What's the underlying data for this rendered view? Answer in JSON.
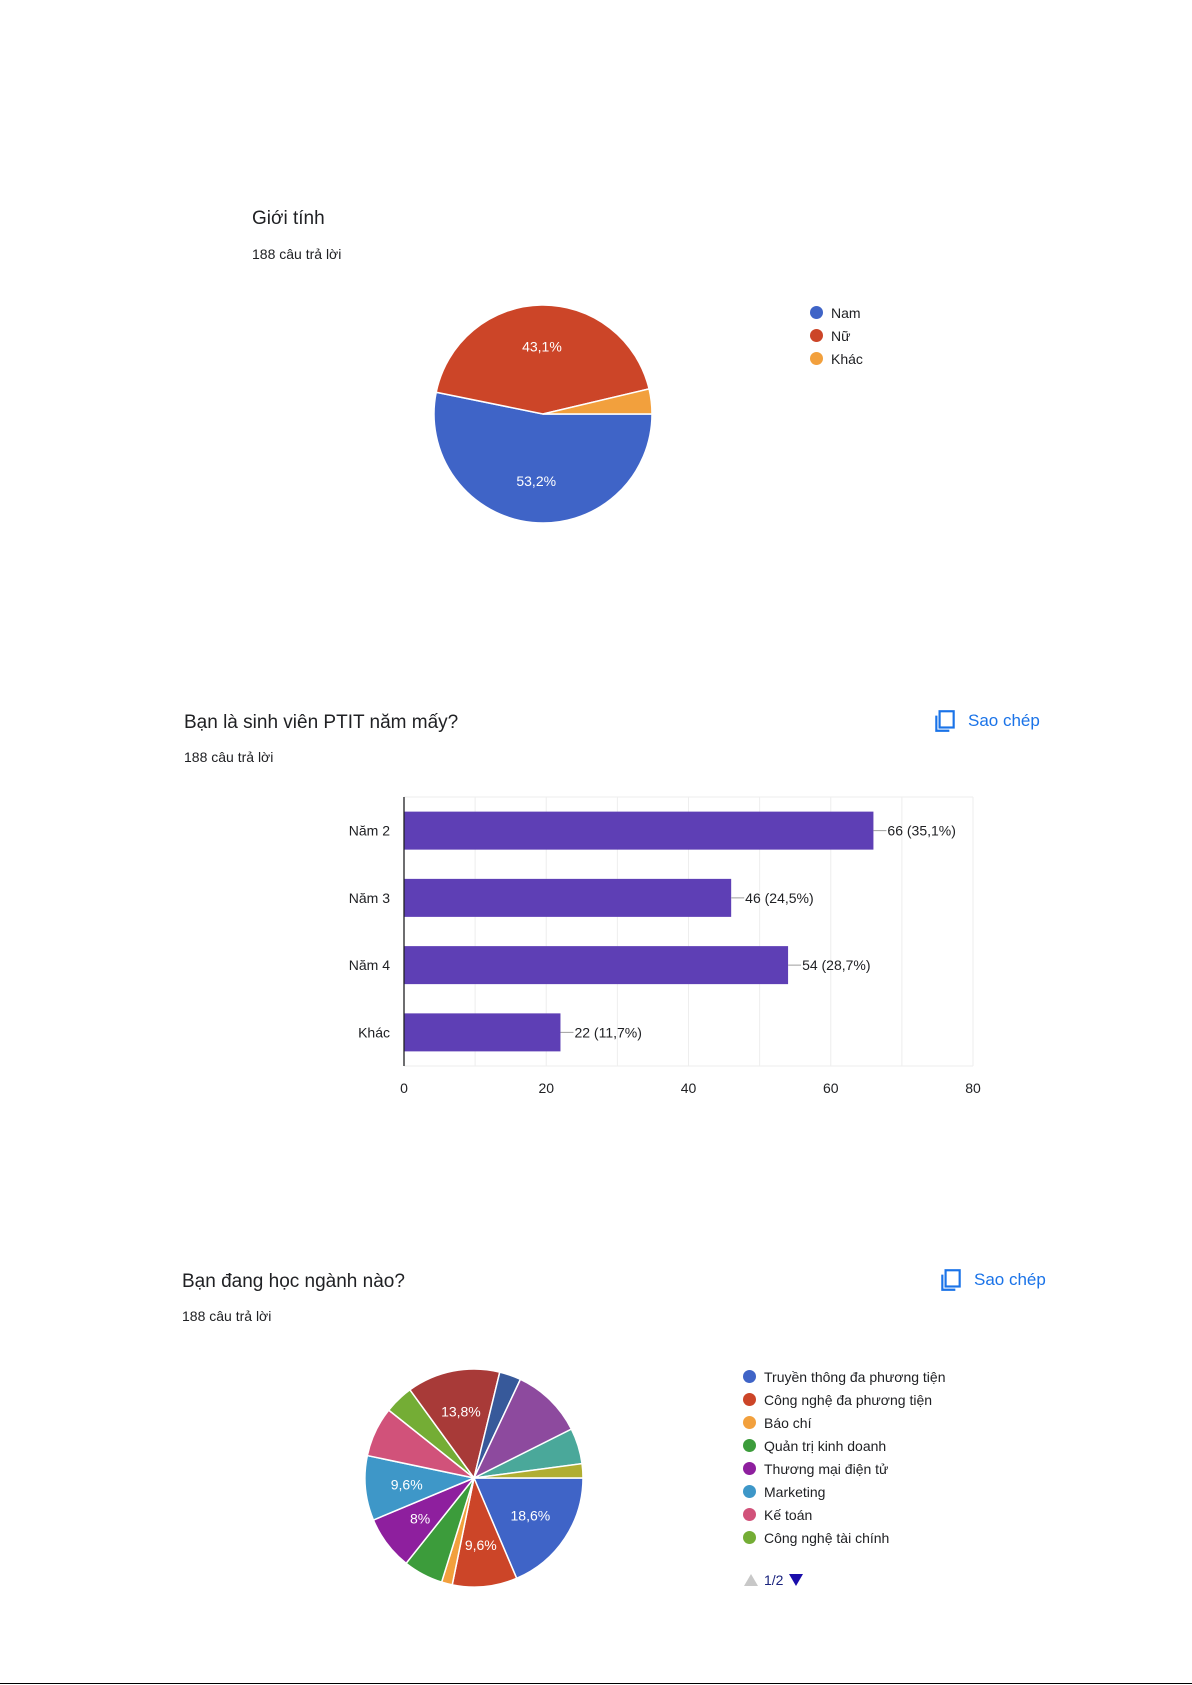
{
  "sections": [
    {
      "title": "Giới tính",
      "count": "188 câu trả lời",
      "copy_label": "",
      "chart_data": {
        "type": "pie",
        "slices": [
          {
            "label": "Nam",
            "value": 53.2,
            "display": "53,2%",
            "color": "#3f64c7"
          },
          {
            "label": "Nữ",
            "value": 43.1,
            "display": "43,1%",
            "color": "#cc4528"
          },
          {
            "label": "Khác",
            "value": 3.7,
            "display": "",
            "color": "#f2a03d"
          }
        ]
      }
    },
    {
      "title": "Bạn là sinh viên PTIT năm mấy?",
      "count": "188 câu trả lời",
      "copy_label": "Sao chép",
      "chart_data": {
        "type": "bar",
        "orientation": "horizontal",
        "categories": [
          "Năm 2",
          "Năm 3",
          "Năm 4",
          "Khác"
        ],
        "values": [
          66,
          46,
          54,
          22
        ],
        "data_labels": [
          "66 (35,1%)",
          "46 (24,5%)",
          "54 (28,7%)",
          "22 (11,7%)"
        ],
        "xlim": [
          0,
          80
        ],
        "xticks": [
          0,
          20,
          40,
          60,
          80
        ],
        "grid": true,
        "color": "#5e3fb5"
      }
    },
    {
      "title": "Bạn đang học ngành nào?",
      "count": "188 câu trả lời",
      "copy_label": "Sao chép",
      "chart_data": {
        "type": "pie",
        "slices": [
          {
            "label": "Truyền thông đa phương tiện",
            "value": 18.6,
            "display": "18,6%",
            "color": "#3f64c7"
          },
          {
            "label": "Công nghệ đa phương tiện",
            "value": 9.6,
            "display": "9,6%",
            "color": "#cc4528"
          },
          {
            "label": "Báo chí",
            "value": 1.6,
            "display": "",
            "color": "#f2a03d"
          },
          {
            "label": "Quản trị kinh doanh",
            "value": 5.9,
            "display": "",
            "color": "#3c9c3b"
          },
          {
            "label": "Thương mại điện tử",
            "value": 8.0,
            "display": "8%",
            "color": "#8e1f9e"
          },
          {
            "label": "Marketing",
            "value": 9.6,
            "display": "9,6%",
            "color": "#3e97c8"
          },
          {
            "label": "Kế toán",
            "value": 7.4,
            "display": "",
            "color": "#d1527a"
          },
          {
            "label": "Công nghệ tài chính",
            "value": 4.3,
            "display": "",
            "color": "#74ad35"
          },
          {
            "label": "",
            "value": 13.8,
            "display": "13,8%",
            "color": "#a83a38"
          },
          {
            "label": "",
            "value": 3.2,
            "display": "",
            "color": "#37599a"
          },
          {
            "label": "",
            "value": 10.6,
            "display": "",
            "color": "#8d4a9e"
          },
          {
            "label": "",
            "value": 5.3,
            "display": "",
            "color": "#4aa89a"
          },
          {
            "label": "",
            "value": 2.1,
            "display": "",
            "color": "#b0ae31"
          }
        ]
      },
      "pager": "1/2"
    }
  ]
}
